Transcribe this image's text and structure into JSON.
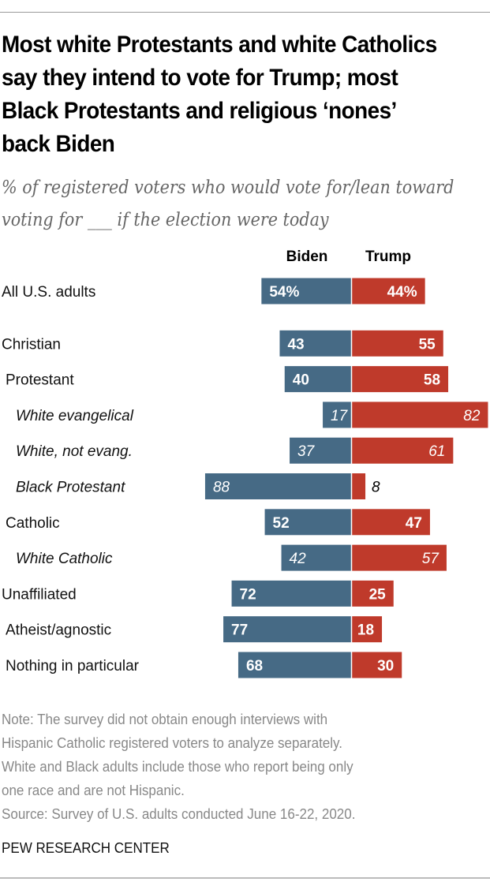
{
  "title": "Most white Protestants and white Catholics say they intend to vote for Trump; most Black Protestants and religious ‘nones’ back Biden",
  "subtitle": "% of registered voters who would vote for/lean toward voting for ___ if the election were today",
  "notes": [
    "Note: The survey did not obtain enough interviews with",
    "Hispanic Catholic registered voters to analyze separately.",
    "White and Black adults include those who report being only",
    "one race and are not Hispanic.",
    "Source: Survey of U.S. adults conducted June 16-22, 2020."
  ],
  "credit": "PEW RESEARCH CENTER",
  "colors": {
    "biden": "#466a85",
    "trump": "#bf3a2b"
  },
  "chart_data": {
    "type": "bar",
    "orientation": "horizontal-diverging",
    "title": "Most white Protestants and white Catholics say they intend to vote for Trump; most Black Protestants and religious ‘nones’ back Biden",
    "subtitle": "% of registered voters who would vote for/lean toward voting for ___ if the election were today",
    "legend": [
      "Biden",
      "Trump"
    ],
    "legend_position": "top-center",
    "categories": [
      {
        "label": "All U.S. adults",
        "indent": 0,
        "italic": false,
        "gap_after": true
      },
      {
        "label": "Christian",
        "indent": 0,
        "italic": false
      },
      {
        "label": "Protestant",
        "indent": 1,
        "italic": false
      },
      {
        "label": "White evangelical",
        "indent": 2,
        "italic": true
      },
      {
        "label": "White, not evang.",
        "indent": 2,
        "italic": true
      },
      {
        "label": "Black Protestant",
        "indent": 2,
        "italic": true
      },
      {
        "label": "Catholic",
        "indent": 1,
        "italic": false
      },
      {
        "label": "White Catholic",
        "indent": 2,
        "italic": true
      },
      {
        "label": "Unaffiliated",
        "indent": 0,
        "italic": false
      },
      {
        "label": "Atheist/agnostic",
        "indent": 1,
        "italic": false
      },
      {
        "label": "Nothing in particular",
        "indent": 1,
        "italic": false
      }
    ],
    "series": [
      {
        "name": "Biden",
        "values": [
          54,
          43,
          40,
          17,
          37,
          88,
          52,
          42,
          72,
          77,
          68
        ]
      },
      {
        "name": "Trump",
        "values": [
          44,
          55,
          58,
          82,
          61,
          8,
          47,
          57,
          25,
          18,
          30
        ]
      }
    ],
    "value_suffix_first_row": "%",
    "xlim": [
      0,
      100
    ]
  }
}
